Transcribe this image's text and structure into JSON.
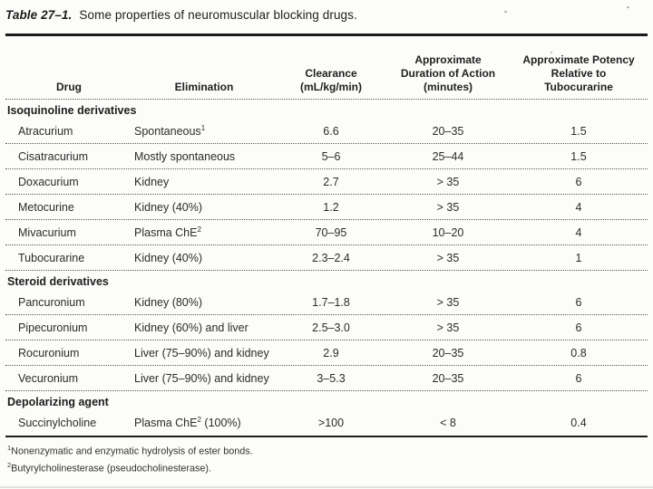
{
  "page": {
    "title_label": "Table 27–1.",
    "title_text": "Some properties of neuromuscular blocking drugs."
  },
  "table": {
    "columns": [
      "Drug",
      "Elimination",
      "Clearance (mL/kg/min)",
      "Approximate Duration of Action (minutes)",
      "Approximate Potency Relative to Tubocurarine"
    ],
    "sections": [
      {
        "label": "Isoquinoline derivatives",
        "rows": [
          {
            "drug": "Atracurium",
            "elim_pre": "Spontaneous",
            "elim_sup": "1",
            "elim_post": "",
            "clearance": "6.6",
            "duration": "20–35",
            "potency": "1.5"
          },
          {
            "drug": "Cisatracurium",
            "elim_pre": "Mostly spontaneous",
            "elim_sup": "",
            "elim_post": "",
            "clearance": "5–6",
            "duration": "25–44",
            "potency": "1.5"
          },
          {
            "drug": "Doxacurium",
            "elim_pre": "Kidney",
            "elim_sup": "",
            "elim_post": "",
            "clearance": "2.7",
            "duration": "> 35",
            "potency": "6"
          },
          {
            "drug": "Metocurine",
            "elim_pre": "Kidney (40%)",
            "elim_sup": "",
            "elim_post": "",
            "clearance": "1.2",
            "duration": "> 35",
            "potency": "4"
          },
          {
            "drug": "Mivacurium",
            "elim_pre": "Plasma ChE",
            "elim_sup": "2",
            "elim_post": "",
            "clearance": "70–95",
            "duration": "10–20",
            "potency": "4"
          },
          {
            "drug": "Tubocurarine",
            "elim_pre": "Kidney (40%)",
            "elim_sup": "",
            "elim_post": "",
            "clearance": "2.3–2.4",
            "duration": "> 35",
            "potency": "1"
          }
        ]
      },
      {
        "label": "Steroid derivatives",
        "rows": [
          {
            "drug": "Pancuronium",
            "elim_pre": "Kidney (80%)",
            "elim_sup": "",
            "elim_post": "",
            "clearance": "1.7–1.8",
            "duration": "> 35",
            "potency": "6"
          },
          {
            "drug": "Pipecuronium",
            "elim_pre": "Kidney (60%) and liver",
            "elim_sup": "",
            "elim_post": "",
            "clearance": "2.5–3.0",
            "duration": "> 35",
            "potency": "6"
          },
          {
            "drug": "Rocuronium",
            "elim_pre": "Liver (75–90%) and kidney",
            "elim_sup": "",
            "elim_post": "",
            "clearance": "2.9",
            "duration": "20–35",
            "potency": "0.8"
          },
          {
            "drug": "Vecuronium",
            "elim_pre": "Liver (75–90%) and kidney",
            "elim_sup": "",
            "elim_post": "",
            "clearance": "3–5.3",
            "duration": "20–35",
            "potency": "6"
          }
        ]
      },
      {
        "label": "Depolarizing agent",
        "rows": [
          {
            "drug": "Succinylcholine",
            "elim_pre": "Plasma ChE",
            "elim_sup": "2",
            "elim_post": " (100%)",
            "clearance": ">100",
            "duration": "< 8",
            "potency": "0.4"
          }
        ]
      }
    ]
  },
  "footnotes": [
    {
      "sup": "1",
      "text": "Nonenzymatic and enzymatic hydrolysis of ester bonds."
    },
    {
      "sup": "2",
      "text": "Butyrylcholinesterase (pseudocholinesterase)."
    }
  ],
  "colors": {
    "background": "#fcfcfa",
    "text": "#2b2b2b",
    "rule": "#1c1c1c",
    "dotted_separator": "#595959"
  }
}
